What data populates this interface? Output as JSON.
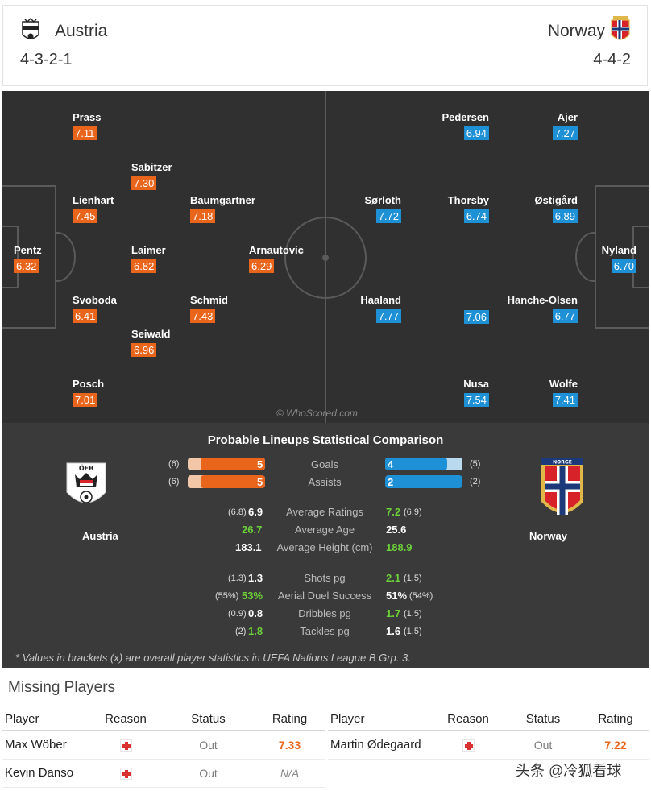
{
  "header": {
    "home": {
      "name": "Austria",
      "formation": "4-3-2-1"
    },
    "away": {
      "name": "Norway",
      "formation": "4-4-2"
    }
  },
  "pitch": {
    "home_players": [
      {
        "name": "Prass",
        "rating": "7.11"
      },
      {
        "name": "Sabitzer",
        "rating": "7.30"
      },
      {
        "name": "Lienhart",
        "rating": "7.45"
      },
      {
        "name": "Baumgartner",
        "rating": "7.18"
      },
      {
        "name": "Pentz",
        "rating": "6.32"
      },
      {
        "name": "Laimer",
        "rating": "6.82"
      },
      {
        "name": "Arnautovic",
        "rating": "6.29"
      },
      {
        "name": "Svoboda",
        "rating": "6.41"
      },
      {
        "name": "Schmid",
        "rating": "7.43"
      },
      {
        "name": "Seiwald",
        "rating": "6.96"
      },
      {
        "name": "Posch",
        "rating": "7.01"
      }
    ],
    "away_players": [
      {
        "name": "Pedersen",
        "rating": "6.94"
      },
      {
        "name": "Ajer",
        "rating": "7.27"
      },
      {
        "name": "Sørloth",
        "rating": "7.72"
      },
      {
        "name": "Thorsby",
        "rating": "6.74"
      },
      {
        "name": "Østigård",
        "rating": "6.89"
      },
      {
        "name": "Nyland",
        "rating": "6.70"
      },
      {
        "name": "Haaland",
        "rating": "7.77"
      },
      {
        "name": "",
        "rating": "7.06"
      },
      {
        "name": "Hanche-Olsen",
        "rating": "6.77"
      },
      {
        "name": "Nusa",
        "rating": "7.54"
      },
      {
        "name": "Wolfe",
        "rating": "7.41"
      }
    ],
    "watermark": "© WhoScored.com"
  },
  "stats": {
    "title": "Probable Lineups Statistical Comparison",
    "home_label": "Austria",
    "away_label": "Norway",
    "bars": [
      {
        "label": "Goals",
        "home": "5",
        "home_paren": "(6)",
        "away": "4",
        "away_paren": "(5)"
      },
      {
        "label": "Assists",
        "home": "5",
        "home_paren": "(6)",
        "away": "2",
        "away_paren": "(2)"
      }
    ],
    "rows": [
      {
        "label": "Average Ratings",
        "home_paren": "(6.8)",
        "home": "6.9",
        "away": "7.2",
        "away_paren": "(6.9)"
      },
      {
        "label": "Average Age",
        "home_paren": "",
        "home": "26.7",
        "away": "25.6",
        "away_paren": ""
      },
      {
        "label": "Average Height (cm)",
        "home_paren": "",
        "home": "183.1",
        "away": "188.9",
        "away_paren": ""
      },
      {
        "label": "Shots pg",
        "home_paren": "(1.3)",
        "home": "1.3",
        "away": "2.1",
        "away_paren": "(1.5)"
      },
      {
        "label": "Aerial Duel Success",
        "home_paren": "(55%)",
        "home": "53%",
        "away": "51%",
        "away_paren": "(54%)"
      },
      {
        "label": "Dribbles pg",
        "home_paren": "(0.9)",
        "home": "0.8",
        "away": "1.7",
        "away_paren": "(1.5)"
      },
      {
        "label": "Tackles pg",
        "home_paren": "(2)",
        "home": "1.8",
        "away": "1.6",
        "away_paren": "(1.5)"
      }
    ],
    "footnote": "* Values in brackets (x) are overall player statistics in UEFA Nations League B Grp. 3.",
    "crest_text_home": "ÖFB",
    "crest_text_away": "NORGE"
  },
  "missing": {
    "title": "Missing Players",
    "headers": {
      "player": "Player",
      "reason": "Reason",
      "status": "Status",
      "rating": "Rating"
    },
    "home": [
      {
        "player": "Max Wöber",
        "status": "Out",
        "rating": "7.33"
      },
      {
        "player": "Kevin Danso",
        "status": "Out",
        "rating": "N/A"
      }
    ],
    "away": [
      {
        "player": "Martin Ødegaard",
        "status": "Out",
        "rating": "7.22"
      }
    ]
  },
  "corner_watermark": "头条 @冷狐看球",
  "colors": {
    "home": "#e8651b",
    "away": "#1e90d6",
    "pitch": "#303030",
    "green": "#6cd138"
  }
}
